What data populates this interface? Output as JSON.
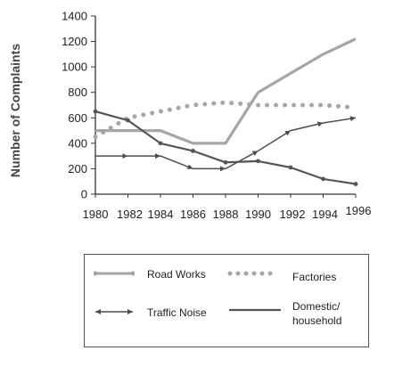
{
  "chart_data": {
    "type": "line",
    "title": "",
    "xlabel": "",
    "ylabel": "Number of Complaints",
    "x": [
      1980,
      1982,
      1984,
      1986,
      1988,
      1990,
      1992,
      1994,
      1996
    ],
    "xlim": [
      1980,
      1996
    ],
    "ylim": [
      0,
      1400
    ],
    "yticks": [
      0,
      200,
      400,
      600,
      800,
      1000,
      1200,
      1400
    ],
    "xticks": [
      "1980",
      "1982",
      "1984",
      "1986",
      "1988",
      "1990",
      "1992",
      "1994",
      "1996"
    ],
    "grid": false,
    "legend_position": "bottom",
    "series": [
      {
        "name": "Road Works",
        "color": "#a6a6a6",
        "style": "solid-thick",
        "points": [
          [
            1980,
            500
          ],
          [
            1982,
            500
          ],
          [
            1984,
            500
          ],
          [
            1986,
            400
          ],
          [
            1988,
            400
          ],
          [
            1990,
            800
          ],
          [
            1992,
            950
          ],
          [
            1994,
            1100
          ],
          [
            1996,
            1220
          ]
        ]
      },
      {
        "name": "Factories",
        "color": "#a6a6a6",
        "style": "dotted",
        "points": [
          [
            1980,
            450
          ],
          [
            1982,
            600
          ],
          [
            1984,
            650
          ],
          [
            1986,
            700
          ],
          [
            1988,
            720
          ],
          [
            1990,
            700
          ],
          [
            1992,
            700
          ],
          [
            1994,
            700
          ],
          [
            1996,
            680
          ]
        ]
      },
      {
        "name": "Traffic Noise",
        "color": "#4d4d4d",
        "style": "arrows",
        "points": [
          [
            1980,
            300
          ],
          [
            1982,
            300
          ],
          [
            1984,
            300
          ],
          [
            1986,
            200
          ],
          [
            1988,
            200
          ],
          [
            1990,
            340
          ],
          [
            1992,
            500
          ],
          [
            1994,
            560
          ],
          [
            1996,
            600
          ]
        ]
      },
      {
        "name": "Domestic/ household",
        "color": "#555555",
        "style": "solid",
        "points": [
          [
            1980,
            650
          ],
          [
            1982,
            580
          ],
          [
            1984,
            400
          ],
          [
            1986,
            340
          ],
          [
            1988,
            250
          ],
          [
            1990,
            260
          ],
          [
            1992,
            210
          ],
          [
            1994,
            120
          ],
          [
            1996,
            80
          ]
        ]
      }
    ]
  },
  "legend": {
    "road_works": "Road Works",
    "factories": "Factories",
    "traffic_noise": "Traffic Noise",
    "domestic_line1": "Domestic/",
    "domestic_line2": "household"
  }
}
